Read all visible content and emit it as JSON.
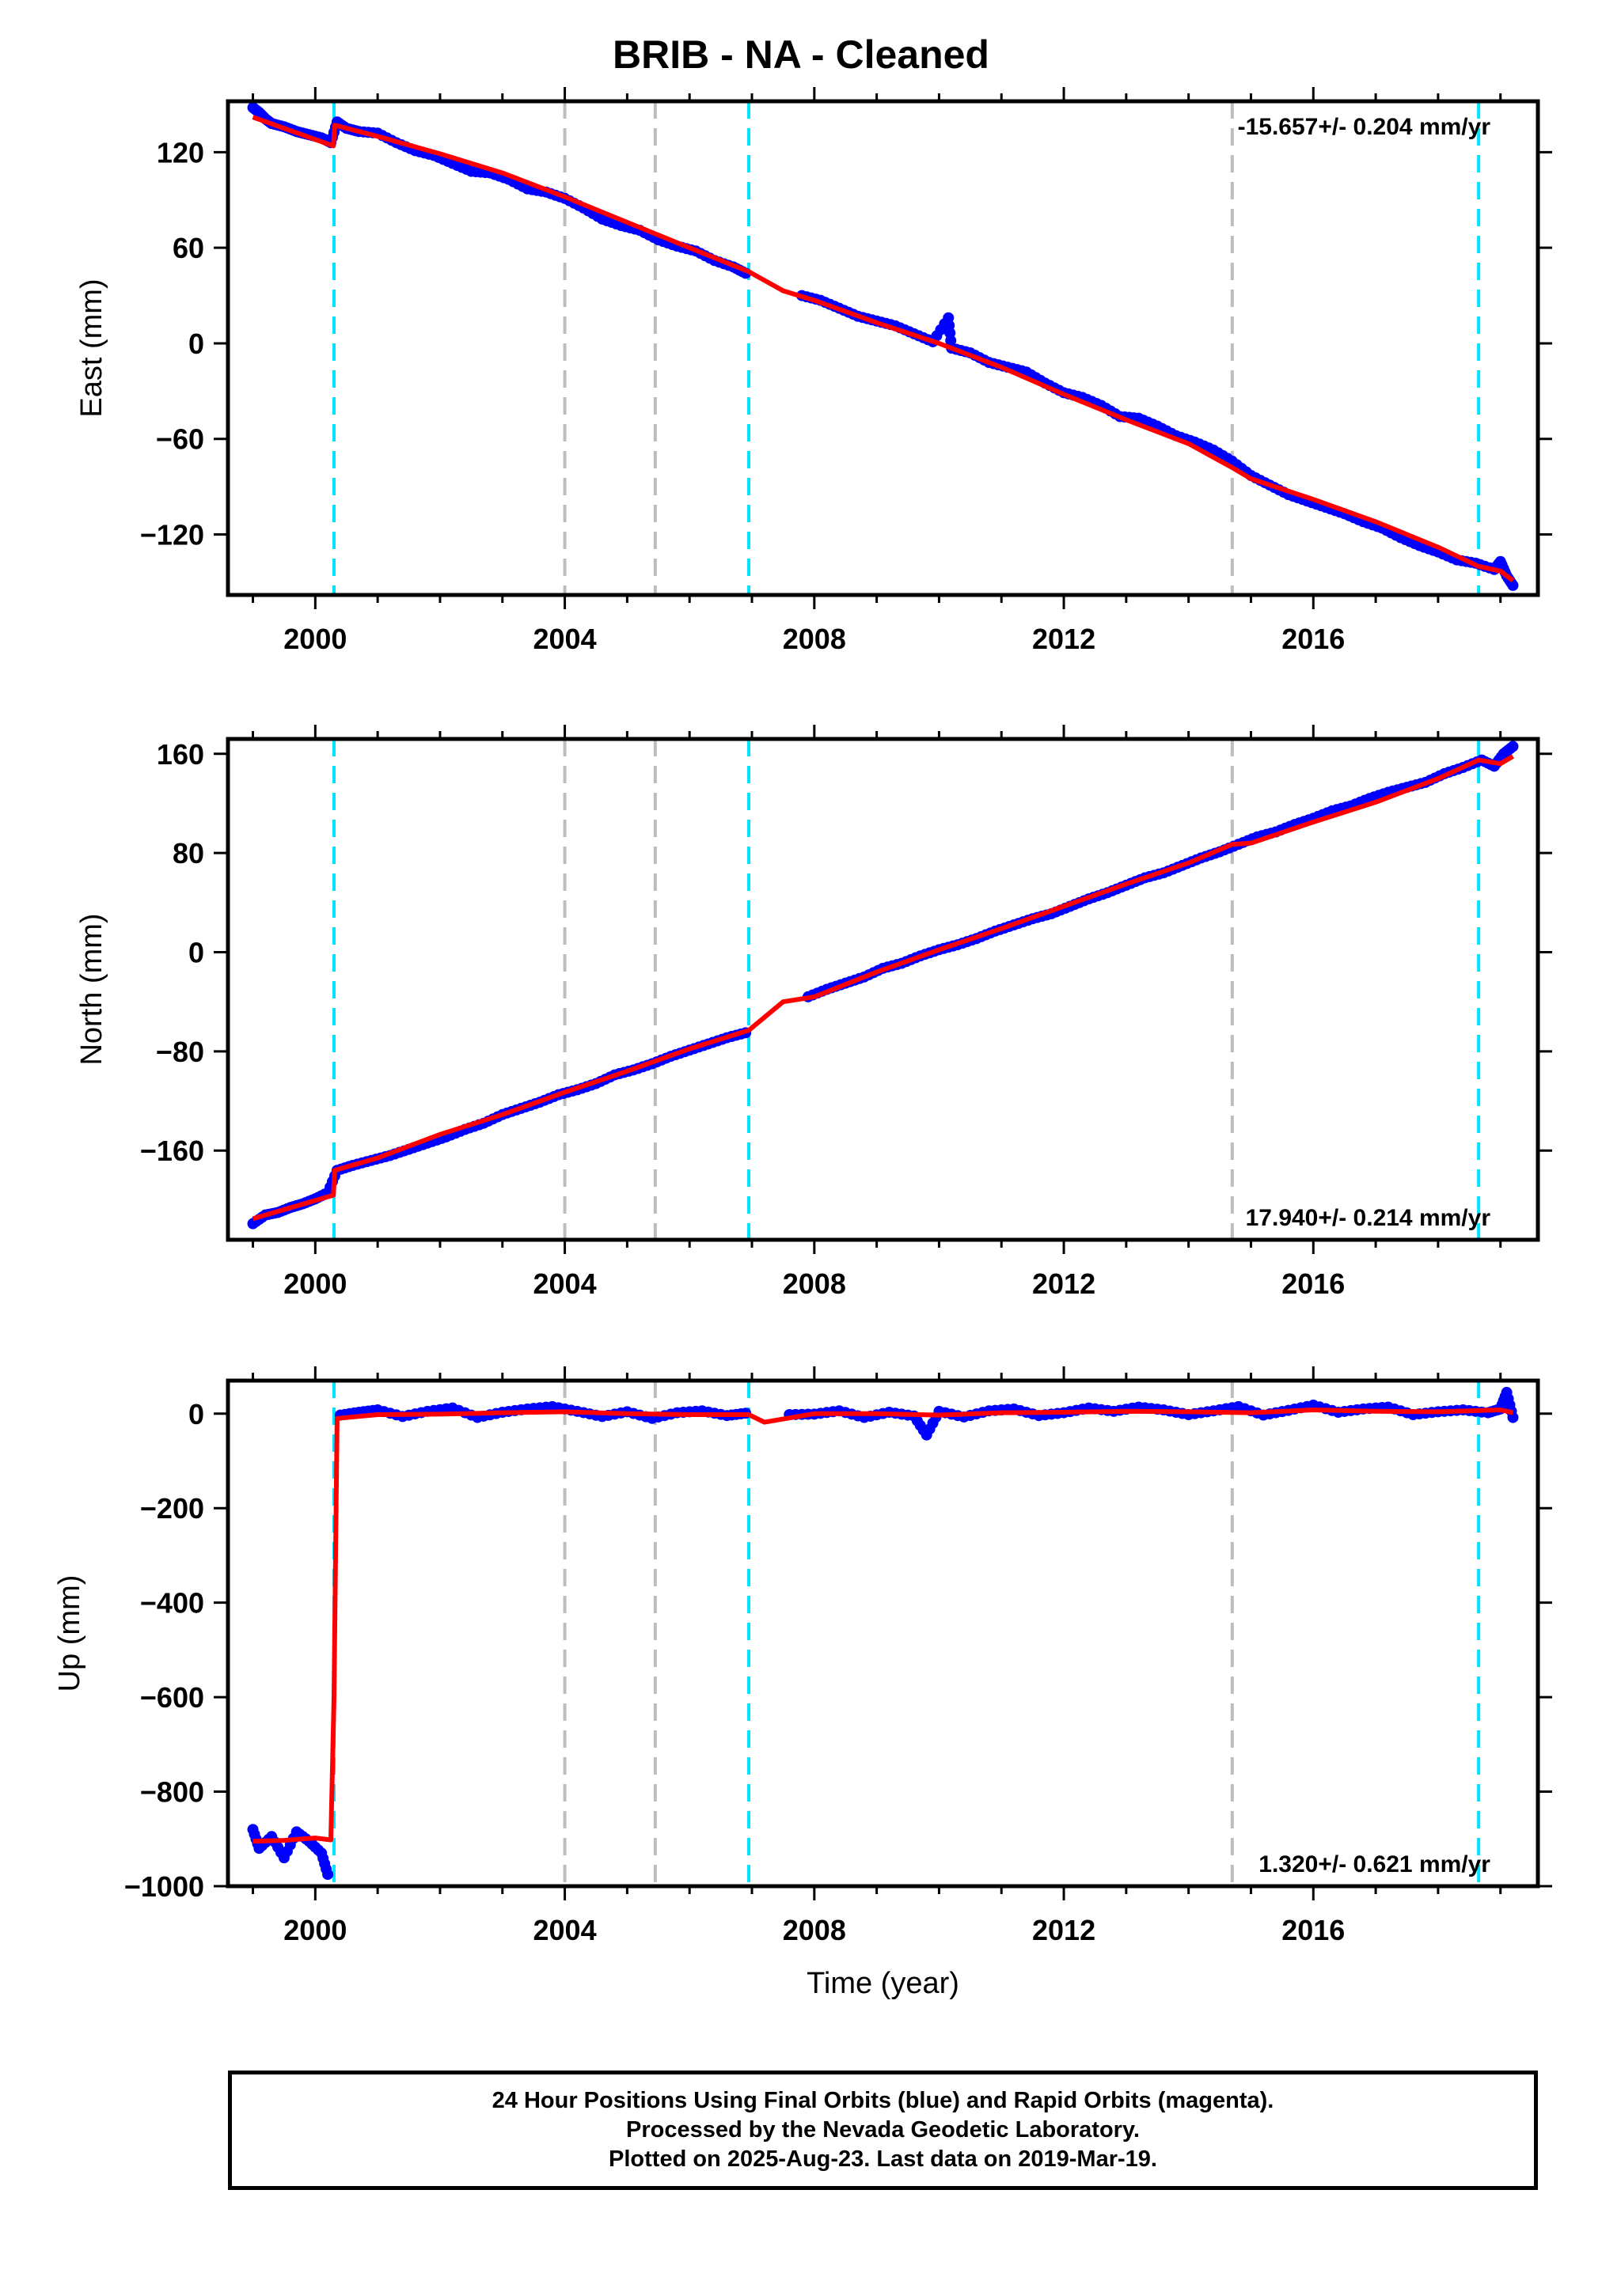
{
  "title": "BRIB  - NA - Cleaned",
  "footer": {
    "line1": "24 Hour Positions Using Final Orbits (blue) and Rapid Orbits (magenta).",
    "line2": "Processed by the Nevada Geodetic Laboratory.",
    "line3": "Plotted on 2025-Aug-23. Last data on 2019-Mar-19."
  },
  "colors": {
    "data_points": "#0000ff",
    "model_line": "#ff0000",
    "equipment_change_lines": "#00e5ff",
    "other_event_lines": "#bdbdbd"
  },
  "chart_data": [
    {
      "type": "scatter",
      "ylabel": "East (mm)",
      "xlabel": "",
      "xlim": [
        1998.6,
        2019.6
      ],
      "ylim": [
        -158,
        152
      ],
      "xticks": [
        2000,
        2004,
        2008,
        2012,
        2016
      ],
      "yticks": [
        120,
        60,
        0,
        -60,
        -120
      ],
      "ytick_labels": [
        "120",
        "60",
        "0",
        "−60",
        "−120"
      ],
      "annotation": "-15.657+/- 0.204 mm/yr",
      "annotation_position": "top-right",
      "event_lines_cyan": [
        2000.3,
        2006.95,
        2018.65
      ],
      "event_lines_gray": [
        2004.0,
        2005.45,
        2014.7
      ],
      "model": {
        "x": [
          1999.0,
          2000.29,
          2000.31,
          2001.0,
          2002.0,
          2003.0,
          2004.0,
          2005.0,
          2006.0,
          2006.95,
          2007.5,
          2008.0,
          2009.0,
          2010.0,
          2011.0,
          2012.0,
          2013.0,
          2014.0,
          2014.7,
          2015.0,
          2016.0,
          2017.0,
          2018.0,
          2018.65,
          2019.0,
          2019.2
        ],
        "y": [
          142,
          124,
          137,
          130,
          119,
          107,
          92,
          76,
          60,
          45,
          33,
          27,
          13,
          0,
          -15,
          -32,
          -48,
          -63,
          -78,
          -85,
          -98,
          -112,
          -128,
          -140,
          -143,
          -149
        ]
      },
      "data": {
        "x": [
          1999.0,
          1999.1,
          1999.2,
          1999.3,
          1999.5,
          1999.7,
          1999.9,
          2000.1,
          2000.25,
          2000.35,
          2000.5,
          2000.7,
          2001.0,
          2001.3,
          2001.6,
          2001.9,
          2002.2,
          2002.5,
          2002.8,
          2003.1,
          2003.4,
          2003.7,
          2004.0,
          2004.3,
          2004.6,
          2004.9,
          2005.2,
          2005.5,
          2005.8,
          2006.1,
          2006.4,
          2006.7,
          2006.9,
          2007.8,
          2008.1,
          2008.4,
          2008.7,
          2009.0,
          2009.3,
          2009.6,
          2009.9,
          2010.15,
          2010.2,
          2010.5,
          2010.8,
          2011.1,
          2011.4,
          2011.7,
          2012.0,
          2012.3,
          2012.6,
          2012.9,
          2013.2,
          2013.5,
          2013.8,
          2014.1,
          2014.4,
          2014.7,
          2015.0,
          2015.3,
          2015.6,
          2015.9,
          2016.2,
          2016.5,
          2016.8,
          2017.1,
          2017.4,
          2017.7,
          2018.0,
          2018.3,
          2018.6,
          2018.9,
          2019.0,
          2019.1,
          2019.2
        ],
        "y": [
          148,
          145,
          141,
          138,
          136,
          133,
          131,
          129,
          126,
          139,
          135,
          133,
          132,
          126,
          121,
          118,
          113,
          108,
          107,
          103,
          97,
          95,
          91,
          85,
          78,
          74,
          71,
          65,
          61,
          58,
          52,
          48,
          44,
          30,
          27,
          22,
          17,
          14,
          11,
          6,
          1,
          16,
          -3,
          -6,
          -12,
          -15,
          -18,
          -25,
          -31,
          -34,
          -39,
          -46,
          -47,
          -52,
          -58,
          -62,
          -67,
          -74,
          -83,
          -89,
          -95,
          -99,
          -103,
          -107,
          -112,
          -116,
          -122,
          -127,
          -131,
          -136,
          -138,
          -142,
          -137,
          -146,
          -152
        ]
      }
    },
    {
      "type": "scatter",
      "ylabel": "North (mm)",
      "xlabel": "",
      "xlim": [
        1998.6,
        2019.6
      ],
      "ylim": [
        -232,
        172
      ],
      "xticks": [
        2000,
        2004,
        2008,
        2012,
        2016
      ],
      "yticks": [
        160,
        80,
        0,
        -80,
        -160
      ],
      "ytick_labels": [
        "160",
        "80",
        "0",
        "−80",
        "−160"
      ],
      "annotation": "17.940+/- 0.214 mm/yr",
      "annotation_position": "bottom-right",
      "event_lines_cyan": [
        2000.3,
        2006.95,
        2018.65
      ],
      "event_lines_gray": [
        2004.0,
        2005.45,
        2014.7
      ],
      "model": {
        "x": [
          1999.0,
          2000.29,
          2000.31,
          2001.0,
          2002.0,
          2003.0,
          2004.0,
          2005.0,
          2006.0,
          2006.95,
          2007.5,
          2008.0,
          2009.0,
          2010.0,
          2011.0,
          2012.0,
          2013.0,
          2014.0,
          2014.7,
          2015.0,
          2016.0,
          2017.0,
          2018.0,
          2018.65,
          2019.0,
          2019.2
        ],
        "y": [
          -215,
          -196,
          -176,
          -166,
          -147,
          -131,
          -113,
          -96,
          -78,
          -63,
          -40,
          -36,
          -16,
          2,
          19,
          37,
          55,
          72,
          87,
          88,
          105,
          121,
          140,
          155,
          152,
          158
        ]
      },
      "data": {
        "x": [
          1999.0,
          1999.2,
          1999.4,
          1999.6,
          1999.8,
          2000.0,
          2000.2,
          2000.35,
          2000.6,
          2000.9,
          2001.2,
          2001.5,
          2001.8,
          2002.1,
          2002.4,
          2002.7,
          2003.0,
          2003.3,
          2003.6,
          2003.9,
          2004.2,
          2004.5,
          2004.8,
          2005.1,
          2005.4,
          2005.7,
          2006.0,
          2006.3,
          2006.6,
          2006.9,
          2007.9,
          2008.2,
          2008.5,
          2008.8,
          2009.1,
          2009.4,
          2009.7,
          2010.0,
          2010.3,
          2010.6,
          2010.9,
          2011.2,
          2011.5,
          2011.8,
          2012.1,
          2012.4,
          2012.7,
          2013.0,
          2013.3,
          2013.6,
          2013.9,
          2014.2,
          2014.5,
          2014.8,
          2015.1,
          2015.4,
          2015.7,
          2016.0,
          2016.3,
          2016.6,
          2016.9,
          2017.2,
          2017.5,
          2017.8,
          2018.1,
          2018.4,
          2018.7,
          2018.9,
          2019.05,
          2019.2
        ],
        "y": [
          -219,
          -212,
          -210,
          -206,
          -203,
          -199,
          -194,
          -176,
          -172,
          -168,
          -164,
          -159,
          -154,
          -149,
          -143,
          -138,
          -131,
          -126,
          -121,
          -115,
          -111,
          -106,
          -99,
          -95,
          -90,
          -84,
          -79,
          -74,
          -69,
          -65,
          -36,
          -30,
          -25,
          -20,
          -13,
          -9,
          -3,
          2,
          6,
          11,
          17,
          22,
          27,
          31,
          37,
          43,
          48,
          54,
          60,
          64,
          70,
          76,
          81,
          87,
          93,
          97,
          103,
          108,
          114,
          118,
          124,
          129,
          133,
          137,
          144,
          149,
          155,
          150,
          160,
          166
        ]
      }
    },
    {
      "type": "scatter",
      "ylabel": "Up (mm)",
      "xlabel": "Time (year)",
      "xlim": [
        1998.6,
        2019.6
      ],
      "ylim": [
        -1000,
        70
      ],
      "xticks": [
        2000,
        2004,
        2008,
        2012,
        2016
      ],
      "yticks": [
        0,
        -200,
        -400,
        -600,
        -800,
        -1000
      ],
      "ytick_labels": [
        "0",
        "−200",
        "−400",
        "−600",
        "−800",
        "−1000"
      ],
      "annotation": "1.320+/- 0.621 mm/yr",
      "annotation_position": "bottom-right",
      "event_lines_cyan": [
        2000.3,
        2006.95,
        2018.65
      ],
      "event_lines_gray": [
        2004.0,
        2005.45,
        2014.7
      ],
      "model": {
        "x": [
          1999.0,
          1999.5,
          2000.0,
          2000.25,
          2000.3,
          2000.35,
          2001.0,
          2002.0,
          2003.0,
          2004.0,
          2005.0,
          2006.0,
          2006.95,
          2007.2,
          2008.0,
          2009.0,
          2010.0,
          2011.0,
          2012.0,
          2013.0,
          2014.0,
          2015.0,
          2016.0,
          2017.0,
          2018.0,
          2019.0,
          2019.2
        ],
        "y": [
          -905,
          -903,
          -898,
          -902,
          -600,
          -10,
          -2,
          -1,
          2,
          4,
          0,
          -2,
          -2,
          -18,
          0,
          0,
          -3,
          2,
          3,
          5,
          4,
          2,
          8,
          5,
          4,
          8,
          2
        ]
      },
      "data": {
        "x": [
          1999.0,
          1999.1,
          1999.3,
          1999.5,
          1999.7,
          1999.9,
          2000.1,
          2000.2,
          2000.4,
          2000.7,
          2001.0,
          2001.4,
          2001.8,
          2002.2,
          2002.6,
          2003.0,
          2003.4,
          2003.8,
          2004.2,
          2004.6,
          2005.0,
          2005.4,
          2005.8,
          2006.2,
          2006.6,
          2006.9,
          2007.6,
          2008.0,
          2008.4,
          2008.8,
          2009.2,
          2009.6,
          2009.8,
          2010.0,
          2010.4,
          2010.8,
          2011.2,
          2011.6,
          2012.0,
          2012.4,
          2012.8,
          2013.2,
          2013.6,
          2014.0,
          2014.4,
          2014.8,
          2015.2,
          2015.6,
          2016.0,
          2016.4,
          2016.8,
          2017.2,
          2017.6,
          2018.0,
          2018.4,
          2018.8,
          2019.0,
          2019.1,
          2019.2
        ],
        "y": [
          -880,
          -920,
          -895,
          -940,
          -885,
          -905,
          -930,
          -975,
          -3,
          3,
          8,
          -6,
          5,
          12,
          -8,
          3,
          10,
          15,
          5,
          -6,
          4,
          -10,
          2,
          6,
          -4,
          1,
          -2,
          -1,
          6,
          -8,
          3,
          -5,
          -45,
          5,
          -7,
          6,
          10,
          -4,
          2,
          12,
          5,
          14,
          8,
          -2,
          6,
          15,
          -3,
          7,
          18,
          3,
          10,
          14,
          -2,
          4,
          8,
          2,
          10,
          45,
          -8
        ]
      }
    }
  ]
}
